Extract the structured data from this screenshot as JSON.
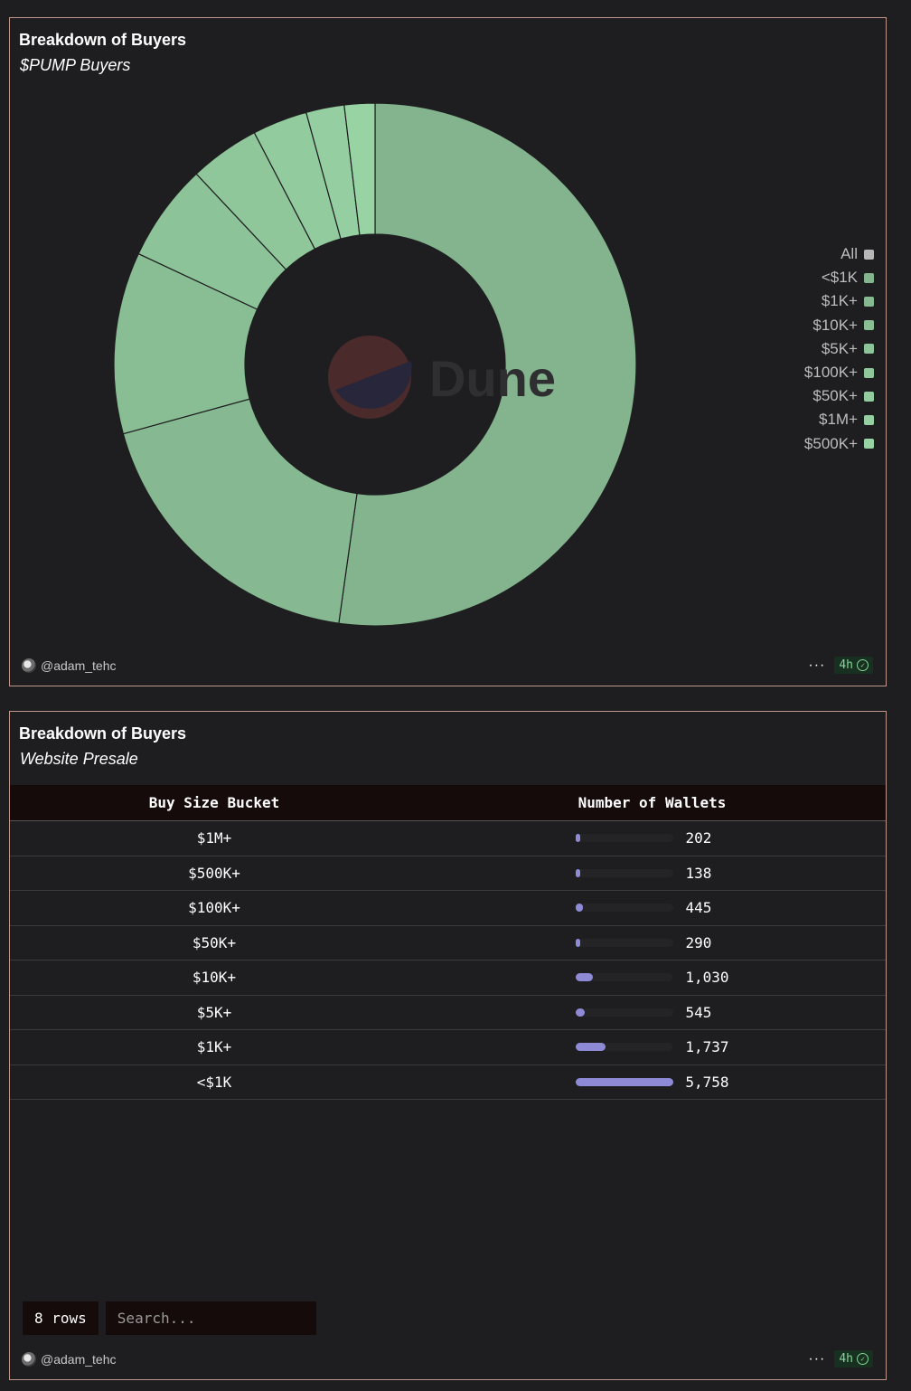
{
  "chart_panel": {
    "title": "Breakdown of Buyers",
    "subtitle": "$PUMP Buyers",
    "watermark": "Dune",
    "author": "@adam_tehc",
    "more_label": "···",
    "refresh_badge": "4h"
  },
  "chart_data": {
    "type": "pie",
    "style": "donut",
    "title": "Breakdown of Buyers",
    "subtitle": "$PUMP Buyers",
    "legend_position": "right",
    "legend": [
      "All",
      "<$1K",
      "$1K+",
      "$10K+",
      "$5K+",
      "$100K+",
      "$50K+",
      "$1M+",
      "$500K+"
    ],
    "legend_colors": [
      "#b7b7b7",
      "#83b48e",
      "#86b991",
      "#89be95",
      "#8cc398",
      "#8fc79b",
      "#92cb9e",
      "#95cfa1",
      "#98d3a4"
    ],
    "categories": [
      "<$1K",
      "$1K+",
      "$10K+",
      "$5K+",
      "$100K+",
      "$50K+",
      "$1M+",
      "$500K+"
    ],
    "values": [
      55.3,
      19.6,
      11.9,
      6.4,
      4.6,
      3.6,
      2.5,
      2.0
    ],
    "unit": "percent of wallets (estimated)"
  },
  "table_panel": {
    "title": "Breakdown of Buyers",
    "subtitle": "Website Presale",
    "columns": [
      "Buy Size Bucket",
      "Number of Wallets"
    ],
    "rows": [
      {
        "bucket": "$1M+",
        "wallets": 202,
        "wallets_label": "202"
      },
      {
        "bucket": "$500K+",
        "wallets": 138,
        "wallets_label": "138"
      },
      {
        "bucket": "$100K+",
        "wallets": 445,
        "wallets_label": "445"
      },
      {
        "bucket": "$50K+",
        "wallets": 290,
        "wallets_label": "290"
      },
      {
        "bucket": "$10K+",
        "wallets": 1030,
        "wallets_label": "1,030"
      },
      {
        "bucket": "$5K+",
        "wallets": 545,
        "wallets_label": "545"
      },
      {
        "bucket": "$1K+",
        "wallets": 1737,
        "wallets_label": "1,737"
      },
      {
        "bucket": "<$1K",
        "wallets": 5758,
        "wallets_label": "5,758"
      }
    ],
    "bar_color": "#8e8ad6",
    "row_count_label": "8 rows",
    "search_placeholder": "Search...",
    "author": "@adam_tehc",
    "more_label": "···",
    "refresh_badge": "4h"
  }
}
